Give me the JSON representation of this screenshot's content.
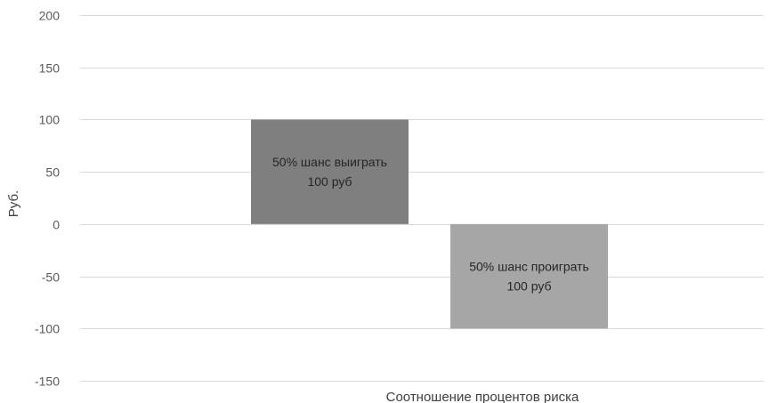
{
  "chart_data": {
    "type": "bar",
    "title": "",
    "ylabel": "Руб.",
    "xlabel": "Соотношение процентов риска",
    "ylim": [
      -150,
      200
    ],
    "yticks": [
      200,
      150,
      100,
      50,
      0,
      -50,
      -100,
      -150
    ],
    "grid": true,
    "legend": "none",
    "bars": [
      {
        "value": 100,
        "label_lines": [
          "50% шанс выиграть",
          "100 руб"
        ],
        "color": "#7f7f7f"
      },
      {
        "value": -100,
        "label_lines": [
          "50% шанс проиграть",
          "100 руб"
        ],
        "color": "#a6a6a6"
      }
    ]
  }
}
